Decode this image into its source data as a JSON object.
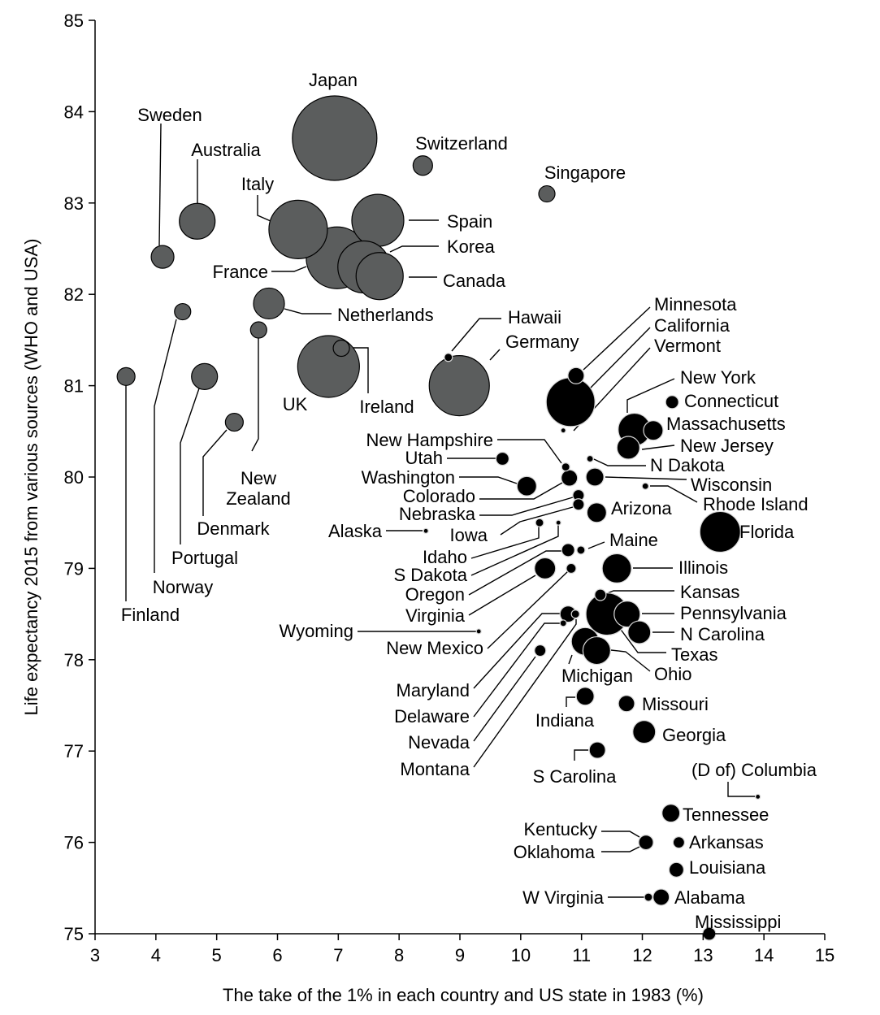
{
  "chart_data": {
    "type": "scatter",
    "subtype": "bubble",
    "xlabel": "The take of the 1% in each country and US state in 1983 (%)",
    "ylabel": "Life expectancy 2015 from various sources (WHO and USA)",
    "xlim": [
      3,
      15
    ],
    "ylim": [
      75,
      85
    ],
    "xticks": [
      3,
      4,
      5,
      6,
      7,
      8,
      9,
      10,
      11,
      12,
      13,
      14,
      15
    ],
    "yticks": [
      75,
      76,
      77,
      78,
      79,
      80,
      81,
      82,
      83,
      84,
      85
    ],
    "grid": false,
    "colors": {
      "country": "#5b5d5d",
      "state": "#000000"
    },
    "points": [
      {
        "name": "Japan",
        "group": "country",
        "x": 6.94,
        "y": 83.71
      },
      {
        "name": "Switzerland",
        "group": "country",
        "x": 8.39,
        "y": 83.41
      },
      {
        "name": "Singapore",
        "group": "country",
        "x": 10.43,
        "y": 83.1
      },
      {
        "name": "Sweden",
        "group": "country",
        "x": 4.11,
        "y": 82.41
      },
      {
        "name": "Australia",
        "group": "country",
        "x": 4.68,
        "y": 82.8
      },
      {
        "name": "Italy",
        "group": "country",
        "x": 6.34,
        "y": 82.71
      },
      {
        "name": "Spain",
        "group": "country",
        "x": 7.65,
        "y": 82.81
      },
      {
        "name": "France",
        "group": "country",
        "x": 6.98,
        "y": 82.4
      },
      {
        "name": "Korea",
        "group": "country",
        "x": 7.42,
        "y": 82.3
      },
      {
        "name": "Canada",
        "group": "country",
        "x": 7.68,
        "y": 82.2
      },
      {
        "name": "Netherlands",
        "group": "country",
        "x": 5.86,
        "y": 81.9
      },
      {
        "name": "Norway",
        "group": "country",
        "x": 4.44,
        "y": 81.81
      },
      {
        "name": "New Zealand",
        "group": "country",
        "x": 5.69,
        "y": 81.61
      },
      {
        "name": "UK",
        "group": "country",
        "x": 6.84,
        "y": 81.21
      },
      {
        "name": "Ireland",
        "group": "country",
        "x": 7.05,
        "y": 81.41
      },
      {
        "name": "Germany",
        "group": "country",
        "x": 8.99,
        "y": 81.0
      },
      {
        "name": "Finland",
        "group": "country",
        "x": 3.51,
        "y": 81.1
      },
      {
        "name": "Portugal",
        "group": "country",
        "x": 4.8,
        "y": 81.1
      },
      {
        "name": "Denmark",
        "group": "country",
        "x": 5.29,
        "y": 80.6
      },
      {
        "name": "Hawaii",
        "group": "state",
        "x": 8.81,
        "y": 81.31
      },
      {
        "name": "California",
        "group": "state",
        "x": 10.82,
        "y": 80.82
      },
      {
        "name": "Minnesota",
        "group": "state",
        "x": 10.91,
        "y": 81.11
      },
      {
        "name": "Vermont",
        "group": "state",
        "x": 10.7,
        "y": 80.51
      },
      {
        "name": "New York",
        "group": "state",
        "x": 11.87,
        "y": 80.52
      },
      {
        "name": "Connecticut",
        "group": "state",
        "x": 12.49,
        "y": 80.82
      },
      {
        "name": "Massachusetts",
        "group": "state",
        "x": 12.18,
        "y": 80.51
      },
      {
        "name": "New Jersey",
        "group": "state",
        "x": 11.77,
        "y": 80.32
      },
      {
        "name": "New Hampshire",
        "group": "state",
        "x": 10.74,
        "y": 80.11
      },
      {
        "name": "N Dakota",
        "group": "state",
        "x": 11.14,
        "y": 80.2
      },
      {
        "name": "Utah",
        "group": "state",
        "x": 9.7,
        "y": 80.2
      },
      {
        "name": "Washington",
        "group": "state",
        "x": 10.1,
        "y": 79.9
      },
      {
        "name": "Colorado",
        "group": "state",
        "x": 10.8,
        "y": 79.99
      },
      {
        "name": "Wisconsin",
        "group": "state",
        "x": 11.22,
        "y": 80.0
      },
      {
        "name": "Rhode Island",
        "group": "state",
        "x": 12.05,
        "y": 79.9
      },
      {
        "name": "Nebraska",
        "group": "state",
        "x": 10.95,
        "y": 79.8
      },
      {
        "name": "Iowa",
        "group": "state",
        "x": 10.95,
        "y": 79.7
      },
      {
        "name": "Arizona",
        "group": "state",
        "x": 11.25,
        "y": 79.61
      },
      {
        "name": "Alaska",
        "group": "state",
        "x": 8.44,
        "y": 79.41
      },
      {
        "name": "Idaho",
        "group": "state",
        "x": 10.31,
        "y": 79.5
      },
      {
        "name": "S Dakota",
        "group": "state",
        "x": 10.62,
        "y": 79.5
      },
      {
        "name": "Florida",
        "group": "state",
        "x": 13.28,
        "y": 79.4
      },
      {
        "name": "Oregon",
        "group": "state",
        "x": 10.78,
        "y": 79.2
      },
      {
        "name": "Maine",
        "group": "state",
        "x": 10.99,
        "y": 79.2
      },
      {
        "name": "Virginia",
        "group": "state",
        "x": 10.4,
        "y": 79.0
      },
      {
        "name": "New Mexico",
        "group": "state",
        "x": 10.83,
        "y": 79.0
      },
      {
        "name": "Illinois",
        "group": "state",
        "x": 11.58,
        "y": 79.0
      },
      {
        "name": "Wyoming",
        "group": "state",
        "x": 9.31,
        "y": 78.31
      },
      {
        "name": "Texas",
        "group": "state",
        "x": 11.42,
        "y": 78.5
      },
      {
        "name": "Kansas",
        "group": "state",
        "x": 11.31,
        "y": 78.71
      },
      {
        "name": "Pennsylvania",
        "group": "state",
        "x": 11.75,
        "y": 78.5
      },
      {
        "name": "N Carolina",
        "group": "state",
        "x": 11.95,
        "y": 78.3
      },
      {
        "name": "Maryland",
        "group": "state",
        "x": 10.78,
        "y": 78.5
      },
      {
        "name": "Delaware",
        "group": "state",
        "x": 10.7,
        "y": 78.4
      },
      {
        "name": "Montana",
        "group": "state",
        "x": 10.9,
        "y": 78.5
      },
      {
        "name": "Nevada",
        "group": "state",
        "x": 10.32,
        "y": 78.1
      },
      {
        "name": "Michigan",
        "group": "state",
        "x": 11.06,
        "y": 78.2
      },
      {
        "name": "Ohio",
        "group": "state",
        "x": 11.25,
        "y": 78.1
      },
      {
        "name": "Indiana",
        "group": "state",
        "x": 11.06,
        "y": 77.6
      },
      {
        "name": "Missouri",
        "group": "state",
        "x": 11.74,
        "y": 77.52
      },
      {
        "name": "Georgia",
        "group": "state",
        "x": 12.03,
        "y": 77.21
      },
      {
        "name": "S Carolina",
        "group": "state",
        "x": 11.26,
        "y": 77.01
      },
      {
        "name": "(D of) Columbia",
        "group": "state",
        "x": 13.9,
        "y": 76.5
      },
      {
        "name": "Tennessee",
        "group": "state",
        "x": 12.47,
        "y": 76.32
      },
      {
        "name": "Kentucky",
        "group": "state",
        "x": 12.06,
        "y": 76.0
      },
      {
        "name": "Oklahoma",
        "group": "state",
        "x": 12.06,
        "y": 76.0
      },
      {
        "name": "Arkansas",
        "group": "state",
        "x": 12.6,
        "y": 76.0
      },
      {
        "name": "Louisiana",
        "group": "state",
        "x": 12.56,
        "y": 75.7
      },
      {
        "name": "W Virginia",
        "group": "state",
        "x": 12.1,
        "y": 75.4
      },
      {
        "name": "Alabama",
        "group": "state",
        "x": 12.31,
        "y": 75.4
      },
      {
        "name": "Mississippi",
        "group": "state",
        "x": 13.1,
        "y": 75.0
      }
    ]
  }
}
